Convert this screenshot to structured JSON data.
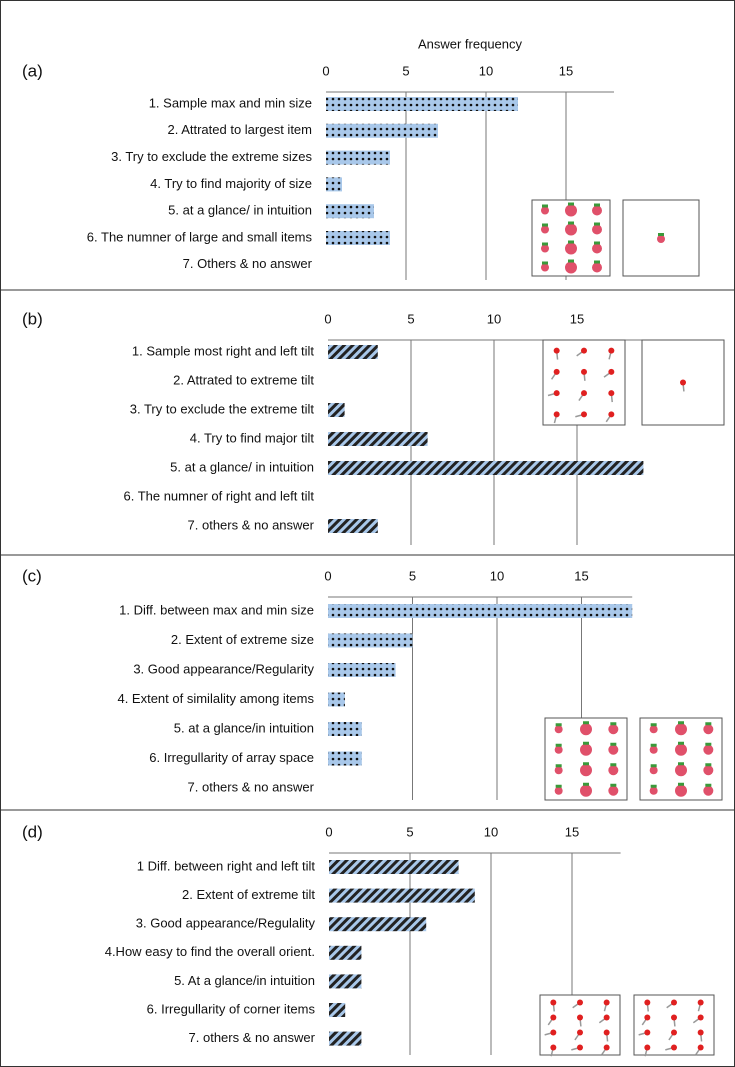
{
  "chart_data": [
    {
      "type": "bar",
      "orientation": "horizontal",
      "label": "(a)",
      "title": "Answer frequency",
      "categories": [
        "1. Sample max and min size",
        "2. Attrated to largest item",
        "3. Try to exclude the extreme sizes",
        "4. Try to find majority of size",
        "5. at a glance/ in intuition",
        "6. The numner of large and small items",
        "7. Others & no answer"
      ],
      "values": [
        12,
        7,
        4,
        1,
        3,
        4,
        0
      ],
      "color": "#a9c8ea",
      "pattern": "dots",
      "xlim": [
        0,
        18
      ],
      "xticks": [
        0,
        5,
        10,
        15
      ],
      "grid": true
    },
    {
      "type": "bar",
      "orientation": "horizontal",
      "label": "(b)",
      "categories": [
        "1. Sample most right and left tilt",
        "2. Attrated to extreme tilt",
        "3. Try to exclude the extreme tilt",
        "4. Try to find major tilt",
        "5. at a glance/ in intuition",
        "6. The numner of right and left tilt",
        "7. others & no answer"
      ],
      "values": [
        3,
        0,
        1,
        6,
        19,
        0,
        3
      ],
      "color": "#a9c8ea",
      "pattern": "stripes",
      "xlim": [
        0,
        19
      ],
      "xticks": [
        0,
        5,
        10,
        15
      ],
      "grid": true
    },
    {
      "type": "bar",
      "orientation": "horizontal",
      "label": "(c)",
      "categories": [
        "1. Diff. between max and min size",
        "2. Extent of extreme size",
        "3. Good appearance/Regularity",
        "4. Extent of similality among items",
        "5. at a glance/in  intuition",
        "6. Irregullarity of array space",
        "7. others & no answer"
      ],
      "values": [
        18,
        5,
        4,
        1,
        2,
        2,
        0
      ],
      "color": "#a9c8ea",
      "pattern": "dots",
      "xlim": [
        0,
        18
      ],
      "xticks": [
        0,
        5,
        10,
        15
      ],
      "grid": true
    },
    {
      "type": "bar",
      "orientation": "horizontal",
      "label": "(d)",
      "categories": [
        "1  Diff. between right and left tilt",
        "2. Extent of extreme tilt",
        "3. Good appearance/Regulality",
        "4.How easy to find the overall orient.",
        "5. At a glance/in intuition",
        "6. Irregullarity of corner items",
        "7. others & no answer"
      ],
      "values": [
        8,
        9,
        6,
        2,
        2,
        1,
        2
      ],
      "color": "#a9c8ea",
      "pattern": "stripes",
      "xlim": [
        0,
        18
      ],
      "xticks": [
        0,
        5,
        10,
        15
      ],
      "grid": true
    }
  ]
}
